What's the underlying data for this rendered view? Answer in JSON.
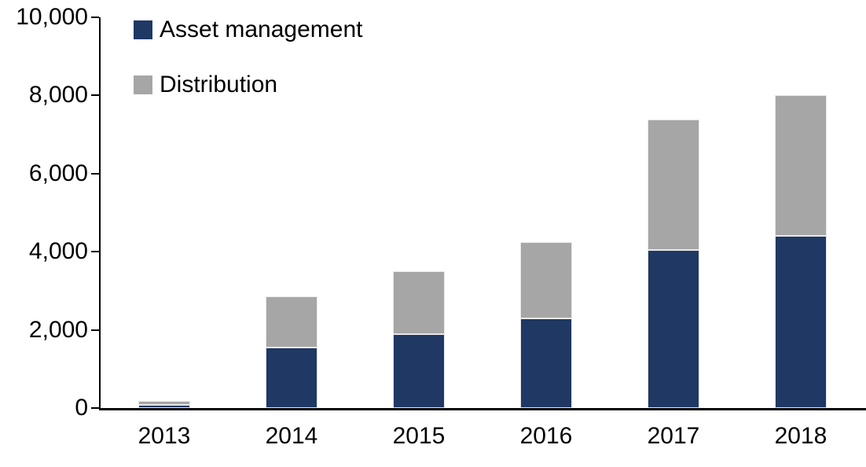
{
  "chart_data": {
    "type": "bar",
    "stacked": true,
    "title": "",
    "xlabel": "",
    "ylabel": "",
    "categories": [
      "2013",
      "2014",
      "2015",
      "2016",
      "2017",
      "2018"
    ],
    "series": [
      {
        "name": "Asset management",
        "color": "#1F3864",
        "values": [
          80,
          1550,
          1900,
          2300,
          4050,
          4400
        ]
      },
      {
        "name": "Distribution",
        "color": "#A6A6A6",
        "values": [
          110,
          1310,
          1600,
          1950,
          3350,
          3600
        ]
      }
    ],
    "totals": [
      190,
      2860,
      3500,
      4250,
      7400,
      8000
    ],
    "ylim": [
      0,
      10000
    ],
    "yticks": [
      0,
      2000,
      4000,
      6000,
      8000,
      10000
    ],
    "ytick_labels": [
      "0",
      "2,000",
      "4,000",
      "6,000",
      "8,000",
      "10,000"
    ],
    "grid": false,
    "legend_position": "top-left",
    "axis_color": "#000000",
    "background_color": "#FFFFFF"
  }
}
